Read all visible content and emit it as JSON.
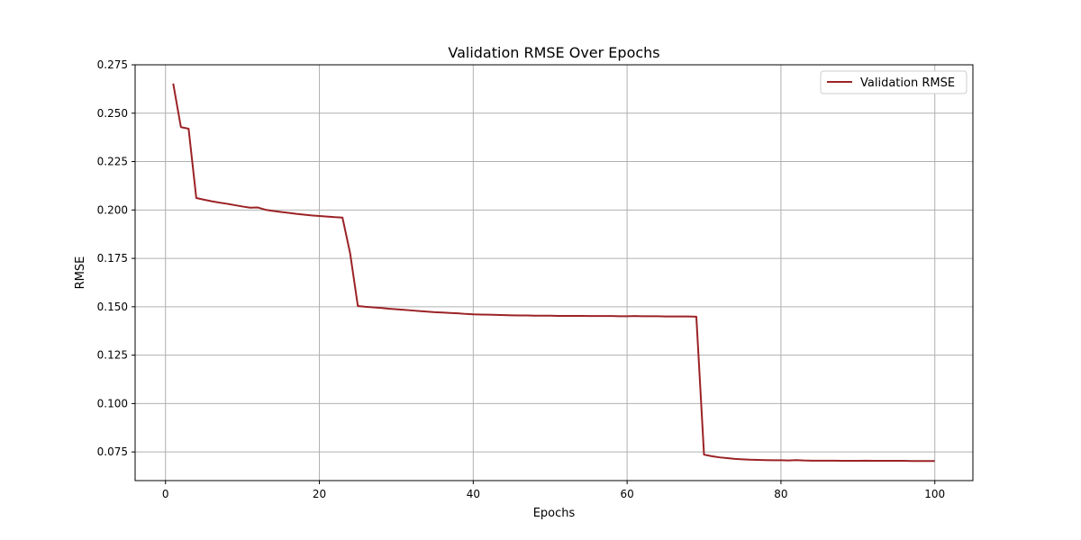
{
  "chart_data": {
    "type": "line",
    "title": "Validation RMSE Over Epochs",
    "xlabel": "Epochs",
    "ylabel": "RMSE",
    "xlim": [
      -3.95,
      104.95
    ],
    "ylim": [
      0.0602,
      0.275
    ],
    "xticks": [
      0,
      20,
      40,
      60,
      80,
      100
    ],
    "yticks": [
      0.075,
      0.1,
      0.125,
      0.15,
      0.175,
      0.2,
      0.225,
      0.25,
      0.275
    ],
    "grid": true,
    "legend_position": "top-right",
    "series": [
      {
        "name": "Validation RMSE",
        "color": "#9b2226",
        "x": [
          1,
          2,
          3,
          4,
          5,
          6,
          7,
          8,
          9,
          10,
          11,
          12,
          13,
          14,
          15,
          16,
          17,
          18,
          19,
          20,
          21,
          22,
          23,
          24,
          25,
          26,
          27,
          28,
          29,
          30,
          31,
          32,
          33,
          34,
          35,
          36,
          37,
          38,
          39,
          40,
          41,
          42,
          43,
          44,
          45,
          46,
          47,
          48,
          49,
          50,
          51,
          52,
          53,
          54,
          55,
          56,
          57,
          58,
          59,
          60,
          61,
          62,
          63,
          64,
          65,
          66,
          67,
          68,
          69,
          70,
          71,
          72,
          73,
          74,
          75,
          76,
          77,
          78,
          79,
          80,
          81,
          82,
          83,
          84,
          85,
          86,
          87,
          88,
          89,
          90,
          91,
          92,
          93,
          94,
          95,
          96,
          97,
          98,
          99,
          100
        ],
        "y": [
          0.2653,
          0.2428,
          0.242,
          0.2062,
          0.2053,
          0.2045,
          0.2038,
          0.2032,
          0.2025,
          0.2018,
          0.2012,
          0.2013,
          0.2001,
          0.1995,
          0.199,
          0.1985,
          0.198,
          0.1976,
          0.1972,
          0.1969,
          0.1966,
          0.1963,
          0.1961,
          0.1776,
          0.1504,
          0.15,
          0.1497,
          0.1494,
          0.149,
          0.1487,
          0.1484,
          0.1481,
          0.1478,
          0.1475,
          0.1472,
          0.147,
          0.1468,
          0.1466,
          0.1463,
          0.1461,
          0.146,
          0.1459,
          0.1458,
          0.1457,
          0.1456,
          0.1455,
          0.1455,
          0.1454,
          0.1454,
          0.1454,
          0.1453,
          0.1453,
          0.1453,
          0.1453,
          0.1452,
          0.1452,
          0.1452,
          0.1452,
          0.1451,
          0.1451,
          0.1452,
          0.1451,
          0.1451,
          0.1451,
          0.145,
          0.145,
          0.145,
          0.145,
          0.1449,
          0.0736,
          0.0728,
          0.0722,
          0.0718,
          0.0714,
          0.0712,
          0.071,
          0.0709,
          0.0708,
          0.0707,
          0.0707,
          0.0706,
          0.0708,
          0.0706,
          0.0705,
          0.0705,
          0.0705,
          0.0705,
          0.0704,
          0.0704,
          0.0704,
          0.0705,
          0.0704,
          0.0704,
          0.0704,
          0.0704,
          0.0704,
          0.0703,
          0.0703,
          0.0703,
          0.0703
        ]
      }
    ]
  }
}
